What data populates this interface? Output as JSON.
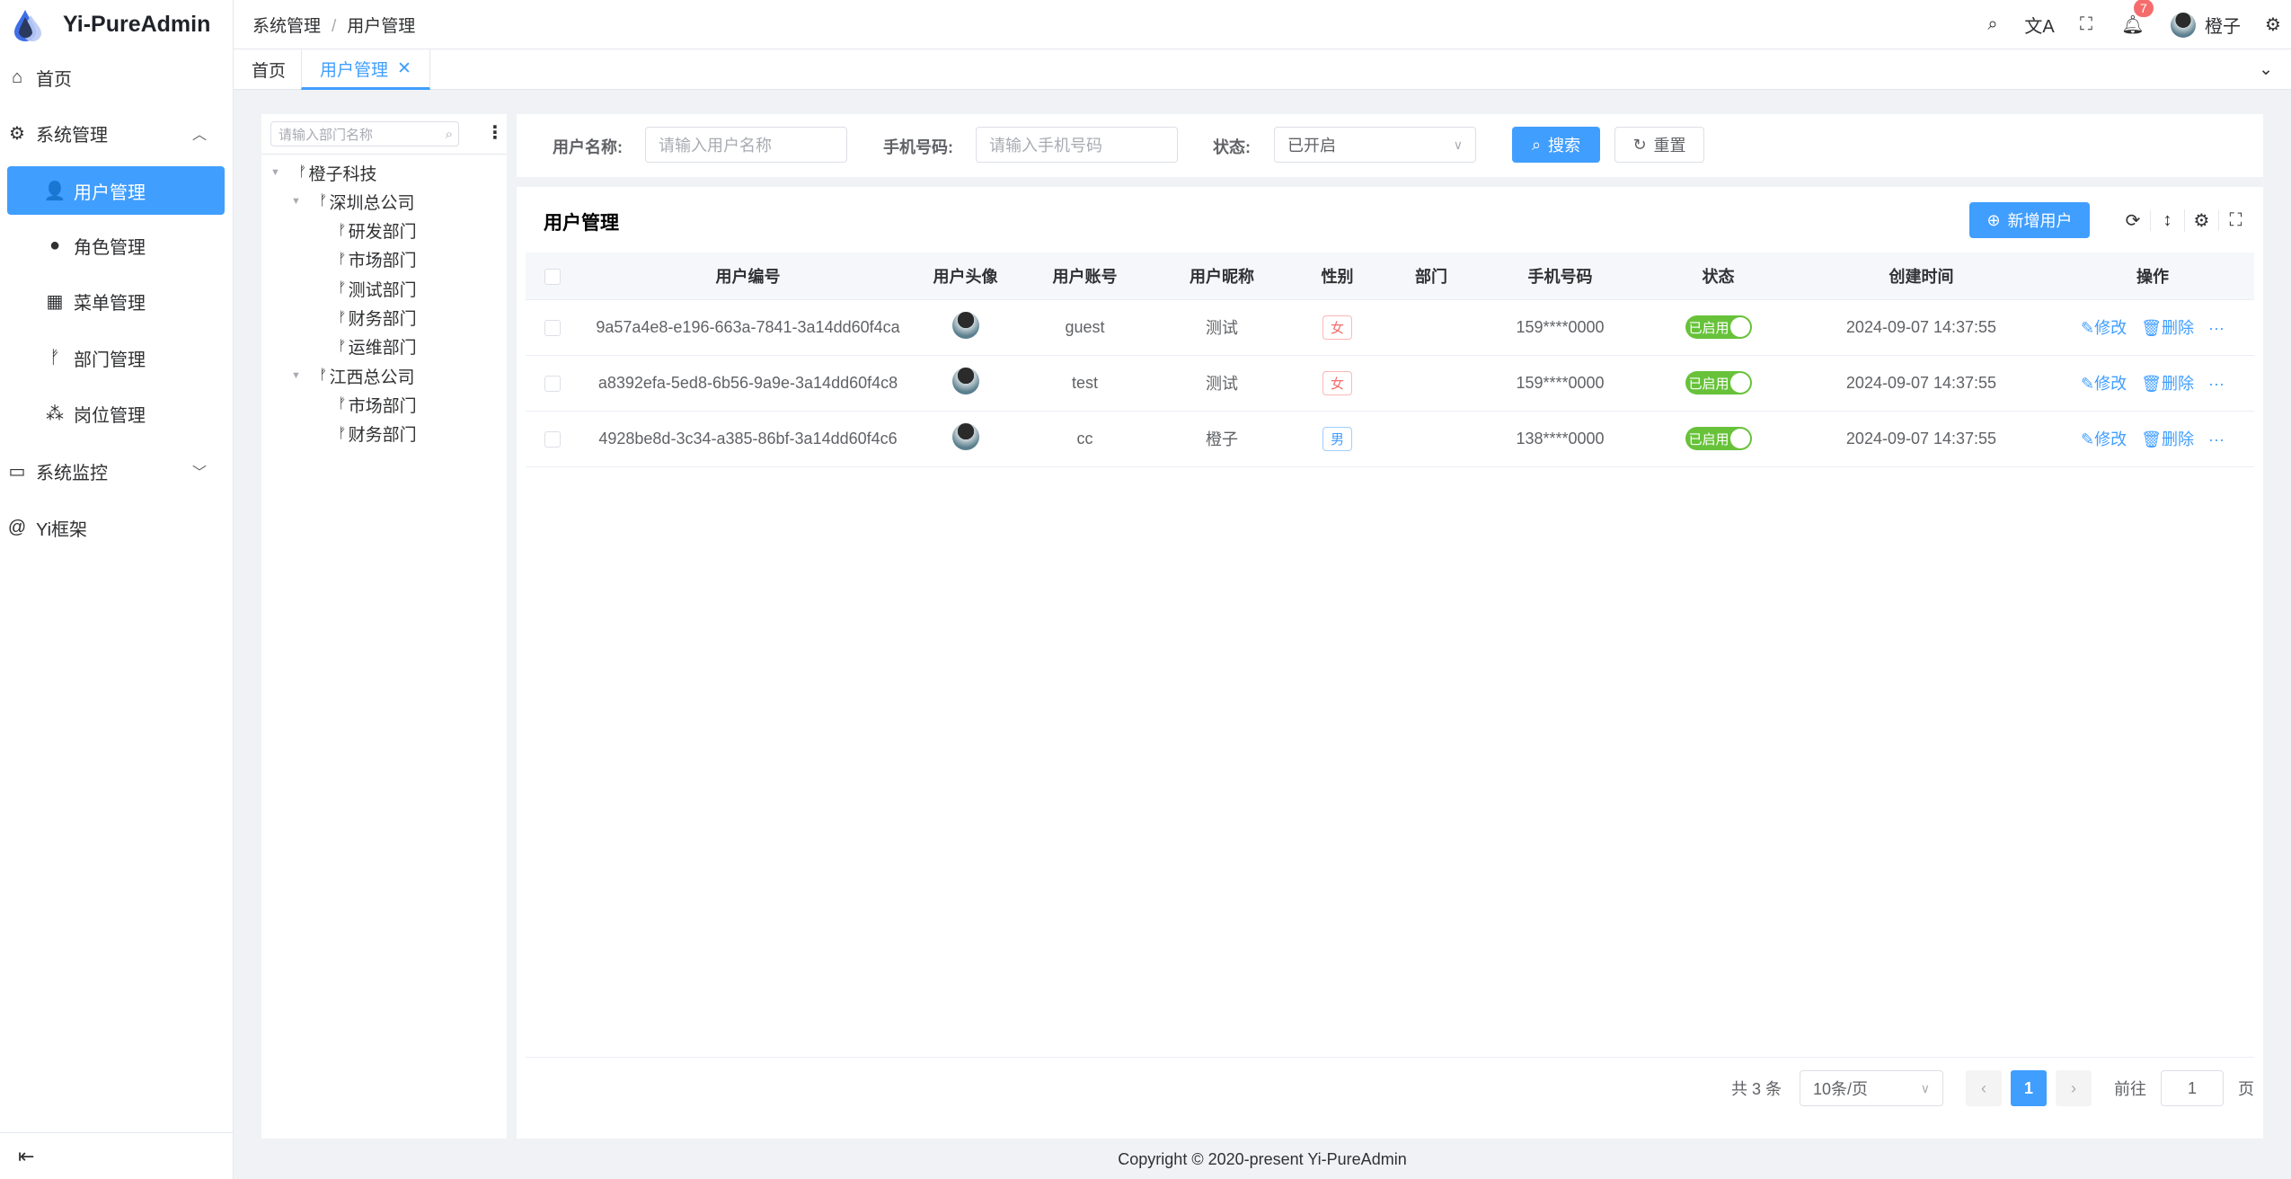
{
  "app": {
    "title": "Yi-PureAdmin",
    "accent": "#409eff"
  },
  "sidebar": {
    "items": [
      {
        "label": "首页",
        "icon": "home-icon"
      },
      {
        "label": "系统管理",
        "icon": "gear-icon"
      },
      {
        "label": "用户管理",
        "icon": "user-icon"
      },
      {
        "label": "角色管理",
        "icon": "role-icon"
      },
      {
        "label": "菜单管理",
        "icon": "grid-icon"
      },
      {
        "label": "部门管理",
        "icon": "branch-icon"
      },
      {
        "label": "岗位管理",
        "icon": "network-icon"
      },
      {
        "label": "系统监控",
        "icon": "monitor-icon"
      },
      {
        "label": "Yi框架",
        "icon": "at-icon"
      }
    ]
  },
  "header": {
    "breadcrumb": [
      "系统管理",
      "用户管理"
    ],
    "notifications": "7",
    "username": "橙子"
  },
  "tabs": [
    {
      "label": "首页"
    },
    {
      "label": "用户管理"
    }
  ],
  "tree": {
    "placeholder": "请输入部门名称",
    "nodes": [
      {
        "label": "橙子科技",
        "level": 0,
        "expanded": true
      },
      {
        "label": "深圳总公司",
        "level": 1,
        "expanded": true
      },
      {
        "label": "研发部门",
        "level": 2
      },
      {
        "label": "市场部门",
        "level": 2
      },
      {
        "label": "测试部门",
        "level": 2
      },
      {
        "label": "财务部门",
        "level": 2
      },
      {
        "label": "运维部门",
        "level": 2
      },
      {
        "label": "江西总公司",
        "level": 1,
        "expanded": true
      },
      {
        "label": "市场部门",
        "level": 2
      },
      {
        "label": "财务部门",
        "level": 2
      }
    ]
  },
  "filters": {
    "name_label": "用户名称:",
    "name_placeholder": "请输入用户名称",
    "phone_label": "手机号码:",
    "phone_placeholder": "请输入手机号码",
    "status_label": "状态:",
    "status_value": "已开启",
    "search": "搜索",
    "reset": "重置"
  },
  "table": {
    "title": "用户管理",
    "add_button": "新增用户",
    "columns": [
      "用户编号",
      "用户头像",
      "用户账号",
      "用户昵称",
      "性别",
      "部门",
      "手机号码",
      "状态",
      "创建时间",
      "操作"
    ],
    "rows": [
      {
        "id": "9a57a4e8-e196-663a-7841-3a14dd60f4ca",
        "account": "guest",
        "nickname": "测试",
        "gender": "女",
        "dept": "",
        "phone": "159****0000",
        "status": "已启用",
        "created": "2024-09-07 14:37:55"
      },
      {
        "id": "a8392efa-5ed8-6b56-9a9e-3a14dd60f4c8",
        "account": "test",
        "nickname": "测试",
        "gender": "女",
        "dept": "",
        "phone": "159****0000",
        "status": "已启用",
        "created": "2024-09-07 14:37:55"
      },
      {
        "id": "4928be8d-3c34-a385-86bf-3a14dd60f4c6",
        "account": "cc",
        "nickname": "橙子",
        "gender": "男",
        "dept": "",
        "phone": "138****0000",
        "status": "已启用",
        "created": "2024-09-07 14:37:55"
      }
    ],
    "edit": "修改",
    "delete": "删除"
  },
  "pagination": {
    "total": "共 3 条",
    "page_size": "10条/页",
    "current": "1",
    "goto": "前往",
    "goto_value": "1",
    "page_suffix": "页"
  },
  "footer": "Copyright © 2020-present Yi-PureAdmin"
}
